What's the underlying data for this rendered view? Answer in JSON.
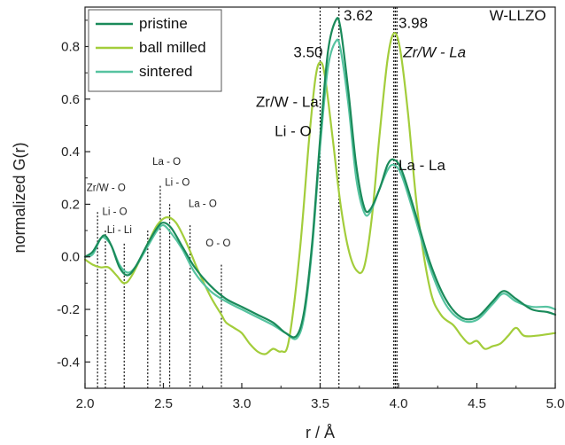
{
  "chart_data": {
    "type": "line",
    "title": "",
    "xlabel": "r / Å",
    "ylabel": "normalized G(r)",
    "xlim": [
      2.0,
      5.0
    ],
    "ylim": [
      -0.5,
      0.95
    ],
    "x_ticks": [
      "2.0",
      "2.5",
      "3.0",
      "3.5",
      "4.0",
      "4.5",
      "5.0"
    ],
    "y_ticks": [
      "-0.4",
      "-0.2",
      "0.0",
      "0.2",
      "0.4",
      "0.6",
      "0.8"
    ],
    "grid": false,
    "legend_position": "top-left",
    "series": [
      {
        "name": "pristine",
        "color": "#1a8a5a",
        "points": [
          [
            2.0,
            0.0
          ],
          [
            2.05,
            0.02
          ],
          [
            2.1,
            0.07
          ],
          [
            2.13,
            0.08
          ],
          [
            2.17,
            0.04
          ],
          [
            2.22,
            -0.04
          ],
          [
            2.27,
            -0.07
          ],
          [
            2.32,
            -0.04
          ],
          [
            2.4,
            0.05
          ],
          [
            2.46,
            0.11
          ],
          [
            2.5,
            0.13
          ],
          [
            2.55,
            0.11
          ],
          [
            2.62,
            0.04
          ],
          [
            2.7,
            -0.04
          ],
          [
            2.8,
            -0.11
          ],
          [
            2.9,
            -0.16
          ],
          [
            3.0,
            -0.19
          ],
          [
            3.1,
            -0.22
          ],
          [
            3.2,
            -0.25
          ],
          [
            3.28,
            -0.29
          ],
          [
            3.35,
            -0.3
          ],
          [
            3.4,
            -0.2
          ],
          [
            3.45,
            0.06
          ],
          [
            3.5,
            0.45
          ],
          [
            3.55,
            0.78
          ],
          [
            3.6,
            0.9
          ],
          [
            3.63,
            0.87
          ],
          [
            3.68,
            0.63
          ],
          [
            3.73,
            0.35
          ],
          [
            3.78,
            0.19
          ],
          [
            3.82,
            0.18
          ],
          [
            3.88,
            0.26
          ],
          [
            3.93,
            0.35
          ],
          [
            3.97,
            0.37
          ],
          [
            4.02,
            0.33
          ],
          [
            4.1,
            0.18
          ],
          [
            4.2,
            -0.02
          ],
          [
            4.3,
            -0.16
          ],
          [
            4.4,
            -0.23
          ],
          [
            4.5,
            -0.23
          ],
          [
            4.6,
            -0.17
          ],
          [
            4.67,
            -0.13
          ],
          [
            4.75,
            -0.16
          ],
          [
            4.85,
            -0.2
          ],
          [
            4.95,
            -0.21
          ],
          [
            5.0,
            -0.22
          ]
        ]
      },
      {
        "name": "ball milled",
        "color": "#a3cd3b",
        "points": [
          [
            2.0,
            -0.01
          ],
          [
            2.05,
            -0.03
          ],
          [
            2.1,
            -0.04
          ],
          [
            2.15,
            -0.04
          ],
          [
            2.2,
            -0.07
          ],
          [
            2.25,
            -0.1
          ],
          [
            2.3,
            -0.07
          ],
          [
            2.4,
            0.05
          ],
          [
            2.46,
            0.12
          ],
          [
            2.52,
            0.15
          ],
          [
            2.58,
            0.13
          ],
          [
            2.65,
            0.05
          ],
          [
            2.72,
            -0.05
          ],
          [
            2.8,
            -0.15
          ],
          [
            2.87,
            -0.22
          ],
          [
            2.9,
            -0.25
          ],
          [
            2.95,
            -0.27
          ],
          [
            3.0,
            -0.29
          ],
          [
            3.05,
            -0.33
          ],
          [
            3.1,
            -0.36
          ],
          [
            3.15,
            -0.37
          ],
          [
            3.2,
            -0.35
          ],
          [
            3.25,
            -0.36
          ],
          [
            3.3,
            -0.32
          ],
          [
            3.37,
            0.02
          ],
          [
            3.43,
            0.45
          ],
          [
            3.47,
            0.68
          ],
          [
            3.5,
            0.74
          ],
          [
            3.53,
            0.69
          ],
          [
            3.58,
            0.45
          ],
          [
            3.63,
            0.2
          ],
          [
            3.68,
            0.03
          ],
          [
            3.73,
            -0.05
          ],
          [
            3.78,
            -0.04
          ],
          [
            3.83,
            0.15
          ],
          [
            3.88,
            0.47
          ],
          [
            3.93,
            0.75
          ],
          [
            3.97,
            0.85
          ],
          [
            4.01,
            0.79
          ],
          [
            4.06,
            0.55
          ],
          [
            4.12,
            0.18
          ],
          [
            4.2,
            -0.12
          ],
          [
            4.27,
            -0.22
          ],
          [
            4.35,
            -0.26
          ],
          [
            4.4,
            -0.3
          ],
          [
            4.45,
            -0.33
          ],
          [
            4.5,
            -0.32
          ],
          [
            4.55,
            -0.35
          ],
          [
            4.6,
            -0.34
          ],
          [
            4.65,
            -0.33
          ],
          [
            4.7,
            -0.3
          ],
          [
            4.75,
            -0.27
          ],
          [
            4.8,
            -0.3
          ],
          [
            4.88,
            -0.3
          ],
          [
            5.0,
            -0.29
          ]
        ]
      },
      {
        "name": "sintered",
        "color": "#56c3a0",
        "points": [
          [
            2.0,
            0.0
          ],
          [
            2.05,
            0.01
          ],
          [
            2.1,
            0.07
          ],
          [
            2.13,
            0.07
          ],
          [
            2.17,
            0.04
          ],
          [
            2.22,
            -0.03
          ],
          [
            2.27,
            -0.06
          ],
          [
            2.32,
            -0.04
          ],
          [
            2.4,
            0.04
          ],
          [
            2.46,
            0.1
          ],
          [
            2.5,
            0.12
          ],
          [
            2.55,
            0.09
          ],
          [
            2.62,
            0.03
          ],
          [
            2.7,
            -0.06
          ],
          [
            2.8,
            -0.13
          ],
          [
            2.9,
            -0.17
          ],
          [
            3.0,
            -0.2
          ],
          [
            3.1,
            -0.23
          ],
          [
            3.2,
            -0.26
          ],
          [
            3.28,
            -0.29
          ],
          [
            3.35,
            -0.31
          ],
          [
            3.4,
            -0.22
          ],
          [
            3.45,
            0.04
          ],
          [
            3.5,
            0.42
          ],
          [
            3.55,
            0.72
          ],
          [
            3.6,
            0.82
          ],
          [
            3.63,
            0.79
          ],
          [
            3.68,
            0.58
          ],
          [
            3.73,
            0.3
          ],
          [
            3.78,
            0.17
          ],
          [
            3.82,
            0.17
          ],
          [
            3.88,
            0.26
          ],
          [
            3.93,
            0.33
          ],
          [
            3.97,
            0.35
          ],
          [
            4.02,
            0.31
          ],
          [
            4.1,
            0.16
          ],
          [
            4.2,
            -0.04
          ],
          [
            4.3,
            -0.18
          ],
          [
            4.4,
            -0.24
          ],
          [
            4.5,
            -0.24
          ],
          [
            4.6,
            -0.18
          ],
          [
            4.67,
            -0.14
          ],
          [
            4.75,
            -0.17
          ],
          [
            4.85,
            -0.19
          ],
          [
            4.95,
            -0.19
          ],
          [
            5.0,
            -0.2
          ]
        ]
      }
    ],
    "dotted_lines": [
      {
        "x": 2.08,
        "y_top": 0.17
      },
      {
        "x": 2.13,
        "y_top": 0.1
      },
      {
        "x": 2.25,
        "y_top": 0.05
      },
      {
        "x": 2.4,
        "y_top": 0.1
      },
      {
        "x": 2.48,
        "y_top": 0.27
      },
      {
        "x": 2.54,
        "y_top": 0.2
      },
      {
        "x": 2.67,
        "y_top": 0.12
      },
      {
        "x": 2.87,
        "y_top": -0.03
      },
      {
        "x": 3.5,
        "y_top": 0.95
      },
      {
        "x": 3.62,
        "y_top": 0.95
      },
      {
        "x": 3.97,
        "y_top": 0.95
      },
      {
        "x": 3.98,
        "y_top": 0.95
      },
      {
        "x": 3.99,
        "y_top": 0.95
      }
    ],
    "annotations": [
      {
        "text": "Zr/W - O",
        "x": 2.01,
        "y": 0.25,
        "size": "small",
        "italic": false
      },
      {
        "text": "Li - O",
        "x": 2.11,
        "y": 0.16,
        "size": "small",
        "italic": false
      },
      {
        "text": "Li - Li",
        "x": 2.14,
        "y": 0.09,
        "size": "small",
        "italic": false
      },
      {
        "text": "La - O",
        "x": 2.43,
        "y": 0.35,
        "size": "small",
        "italic": false
      },
      {
        "text": "Li - O",
        "x": 2.51,
        "y": 0.27,
        "size": "small",
        "italic": false
      },
      {
        "text": "La - O",
        "x": 2.66,
        "y": 0.19,
        "size": "small",
        "italic": false
      },
      {
        "text": "O - O",
        "x": 2.77,
        "y": 0.04,
        "size": "small",
        "italic": false
      },
      {
        "text": "3.50",
        "x": 3.33,
        "y": 0.76,
        "size": "big",
        "italic": false
      },
      {
        "text": "3.62",
        "x": 3.65,
        "y": 0.9,
        "size": "big",
        "italic": false
      },
      {
        "text": "3.98",
        "x": 4.0,
        "y": 0.87,
        "size": "big",
        "italic": false
      },
      {
        "text": "W-LLZO",
        "x": 4.58,
        "y": 0.9,
        "size": "big",
        "italic": false
      },
      {
        "text": "Zr/W - La",
        "x": 4.03,
        "y": 0.76,
        "size": "big",
        "italic": true
      },
      {
        "text": "Zr/W - La",
        "x": 3.09,
        "y": 0.57,
        "size": "big",
        "italic": false
      },
      {
        "text": "Li - O",
        "x": 3.21,
        "y": 0.46,
        "size": "big",
        "italic": false
      },
      {
        "text": "La - La",
        "x": 4.0,
        "y": 0.33,
        "size": "big",
        "italic": false
      }
    ]
  }
}
